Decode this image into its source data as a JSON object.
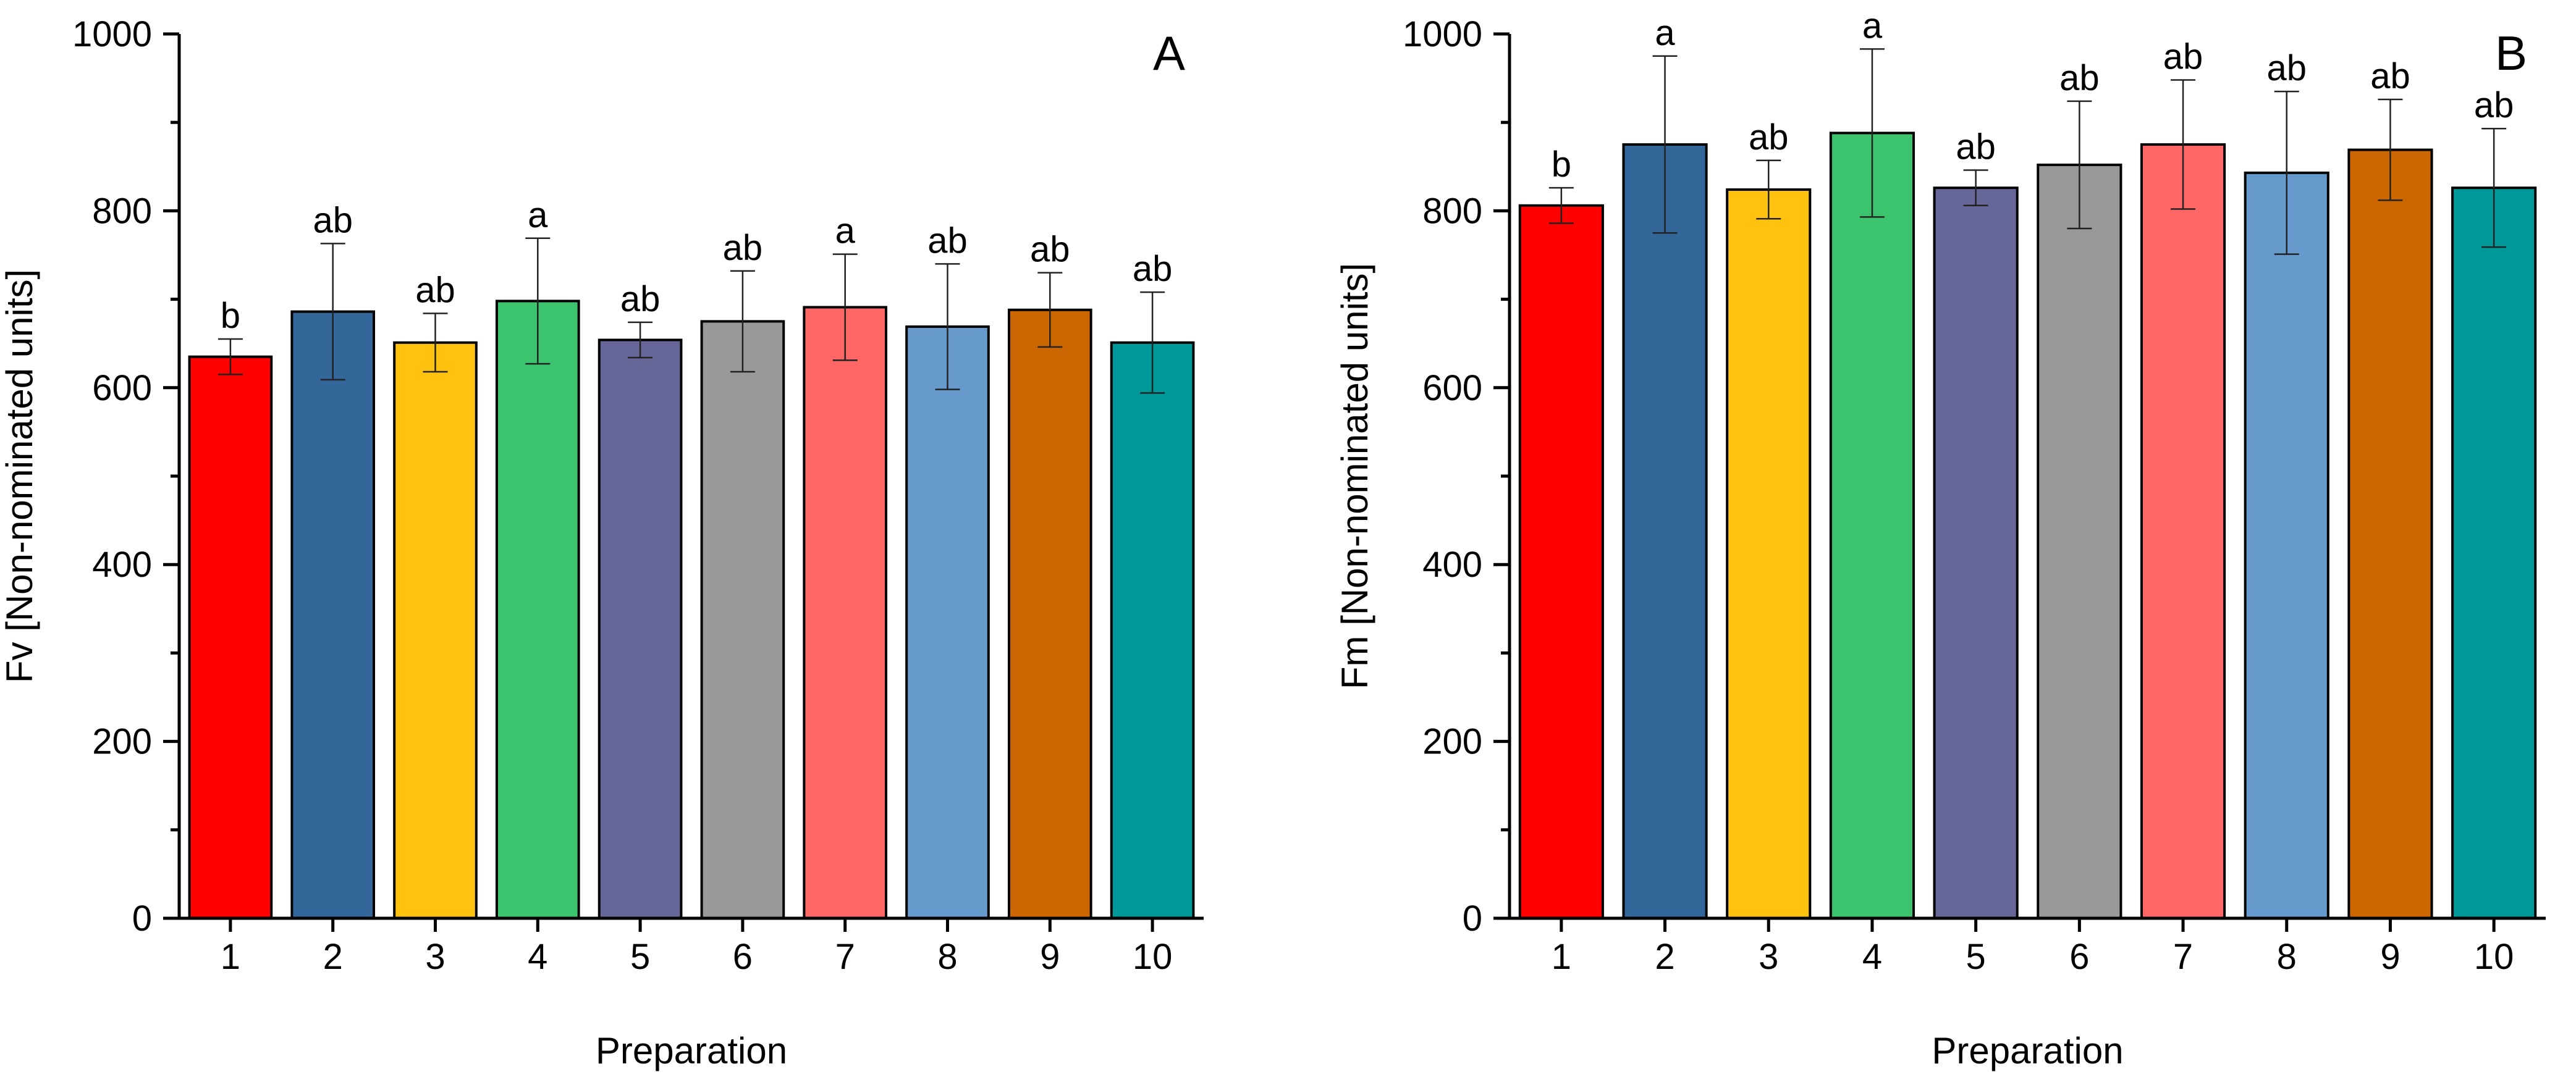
{
  "chart_data": [
    {
      "type": "bar",
      "panel_label": "A",
      "xlabel": "Preparation",
      "ylabel": "Fv [Non-nominated units]",
      "ylim": [
        0,
        1000
      ],
      "yticks": [
        "0",
        "200",
        "400",
        "600",
        "800",
        "1000"
      ],
      "categories": [
        "1",
        "2",
        "3",
        "4",
        "5",
        "6",
        "7",
        "8",
        "9",
        "10"
      ],
      "values": [
        635,
        686,
        651,
        698,
        654,
        675,
        691,
        669,
        688,
        651
      ],
      "errors": [
        20,
        77,
        33,
        71,
        20,
        57,
        60,
        71,
        42,
        57
      ],
      "significance": [
        "b",
        "ab",
        "ab",
        "a",
        "ab",
        "ab",
        "a",
        "ab",
        "ab",
        "ab"
      ],
      "colors": [
        "#FF0000",
        "#336699",
        "#FFC20E",
        "#3CC36E",
        "#666699",
        "#999999",
        "#FF6666",
        "#6699CC",
        "#CC6600",
        "#009999"
      ]
    },
    {
      "type": "bar",
      "panel_label": "B",
      "xlabel": "Preparation",
      "ylabel": "Fm [Non-nominated units]",
      "ylim": [
        0,
        1000
      ],
      "yticks": [
        "0",
        "200",
        "400",
        "600",
        "800",
        "1000"
      ],
      "categories": [
        "1",
        "2",
        "3",
        "4",
        "5",
        "6",
        "7",
        "8",
        "9",
        "10"
      ],
      "values": [
        806,
        875,
        824,
        888,
        826,
        852,
        875,
        843,
        869,
        826
      ],
      "errors": [
        20,
        100,
        33,
        95,
        20,
        72,
        73,
        92,
        57,
        67
      ],
      "significance": [
        "b",
        "a",
        "ab",
        "a",
        "ab",
        "ab",
        "ab",
        "ab",
        "ab",
        "ab"
      ],
      "colors": [
        "#FF0000",
        "#336699",
        "#FFC20E",
        "#3CC36E",
        "#666699",
        "#999999",
        "#FF6666",
        "#6699CC",
        "#CC6600",
        "#009999"
      ]
    }
  ]
}
